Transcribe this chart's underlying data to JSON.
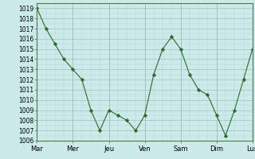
{
  "x": [
    0,
    1,
    2,
    3,
    4,
    5,
    6,
    7,
    8,
    9,
    10,
    11,
    12,
    13,
    14,
    15,
    16,
    17,
    18,
    19,
    20,
    21,
    22,
    23,
    24
  ],
  "y": [
    1019,
    1017,
    1015.5,
    1014,
    1013,
    1012,
    1009,
    1007,
    1009,
    1008.5,
    1008,
    1007,
    1008.5,
    1012.5,
    1015,
    1016.2,
    1015,
    1012.5,
    1011,
    1010.5,
    1008.5,
    1006.5,
    1009,
    1012,
    1015
  ],
  "tick_labels": [
    "Mar",
    "Mer",
    "Jeu",
    "Ven",
    "Sam",
    "Dim",
    "Lun"
  ],
  "tick_positions": [
    0,
    4,
    8,
    12,
    16,
    20,
    24
  ],
  "xlim": [
    0,
    24
  ],
  "ylim": [
    1006,
    1019.5
  ],
  "yticks": [
    1006,
    1007,
    1008,
    1009,
    1010,
    1011,
    1012,
    1013,
    1014,
    1015,
    1016,
    1017,
    1018,
    1019
  ],
  "line_color": "#2d6a2d",
  "marker_color": "#2d6a2d",
  "bg_color": "#cceaea",
  "grid_minor_color": "#b8d4d4",
  "grid_major_color": "#a0bfbf",
  "spine_color": "#4a7a4a",
  "tick_fontsize": 5.5,
  "label_fontsize": 6.0
}
